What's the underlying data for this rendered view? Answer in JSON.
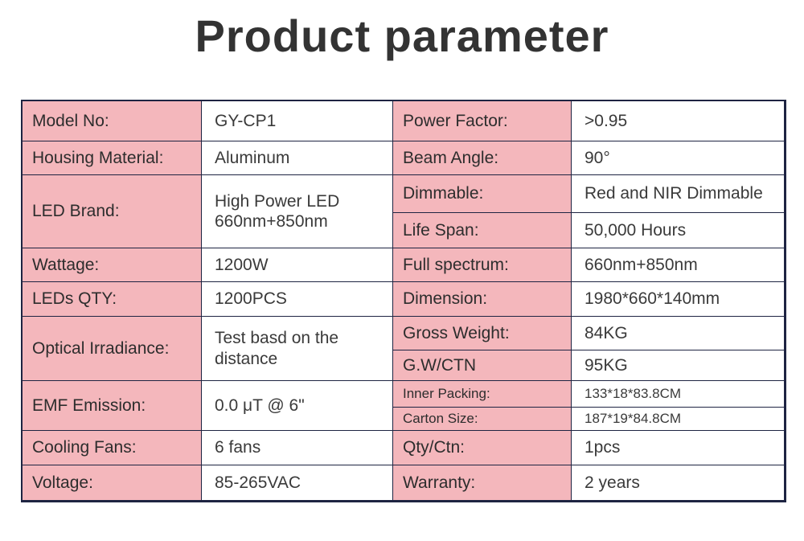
{
  "title": "Product parameter",
  "left_rows": [
    {
      "label": "Model No:",
      "value": "GY-CP1"
    },
    {
      "label": "Housing Material:",
      "value": "Aluminum"
    },
    {
      "label": "LED Brand:",
      "value": [
        "High Power LED",
        "660nm+850nm"
      ]
    },
    {
      "label": "Wattage:",
      "value": "1200W"
    },
    {
      "label": "LEDs QTY:",
      "value": "1200PCS"
    },
    {
      "label": "Optical Irradiance:",
      "value": "Test basd on the distance"
    },
    {
      "label": "EMF Emission:",
      "value": "0.0 μT @ 6\""
    },
    {
      "label": "Cooling Fans:",
      "value": "6 fans"
    },
    {
      "label": "Voltage:",
      "value": "85-265VAC"
    }
  ],
  "right_rows": [
    {
      "label": "Power Factor:",
      "value": ">0.95"
    },
    {
      "label": "Beam Angle:",
      "value": "90°"
    },
    {
      "label": "Dimmable:",
      "value": "Red and NIR Dimmable"
    },
    {
      "label": "Life Span:",
      "value": "50,000 Hours"
    },
    {
      "label": "Full spectrum:",
      "value": "660nm+850nm"
    },
    {
      "label": "Dimension:",
      "value": "1980*660*140mm"
    },
    {
      "label": "Gross Weight:",
      "value": "84KG"
    },
    {
      "label": "G.W/CTN",
      "value": "95KG"
    },
    {
      "label": "Inner Packing:",
      "value": "133*18*83.8CM"
    },
    {
      "label": "Carton Size:",
      "value": "187*19*84.8CM"
    },
    {
      "label": "Qty/Ctn:",
      "value": "1pcs"
    },
    {
      "label": "Warranty:",
      "value": "2 years"
    }
  ]
}
